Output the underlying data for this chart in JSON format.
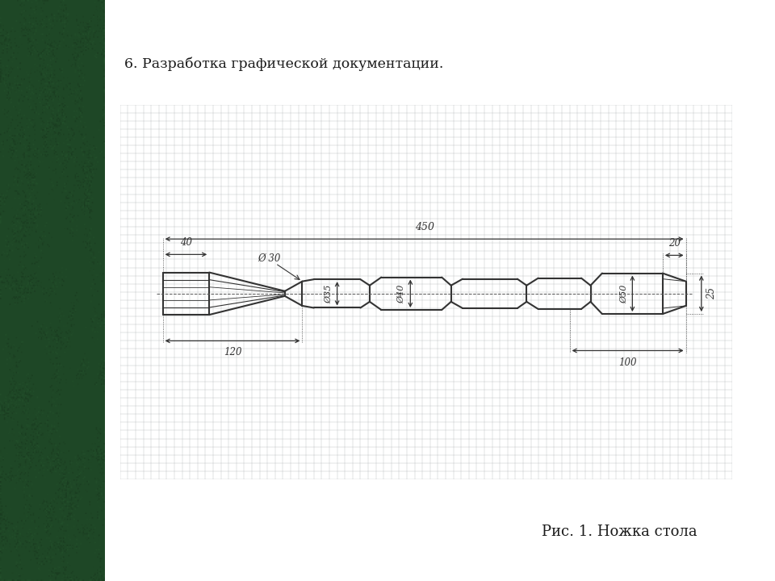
{
  "title": "6. Разработка графической документации.",
  "caption": "Рис. 1. Ножка стола",
  "bg_color": "#ffffff",
  "header_bg": "#c0504d",
  "header_text_color": "#1a1a1a",
  "bottom_line_color": "#556b2f",
  "dark_red_line": "#7b1c1c",
  "line_color": "#333333",
  "annotations": {
    "total_length": "450",
    "left_section": "40",
    "left_cone_length": "120",
    "right_end_width": "20",
    "right_end_height": "25",
    "right_section_length": "100",
    "dia_30": "Ø 30",
    "dia_35": "Ø35",
    "dia_40": "Ø40",
    "dia_50": "Ø50"
  }
}
